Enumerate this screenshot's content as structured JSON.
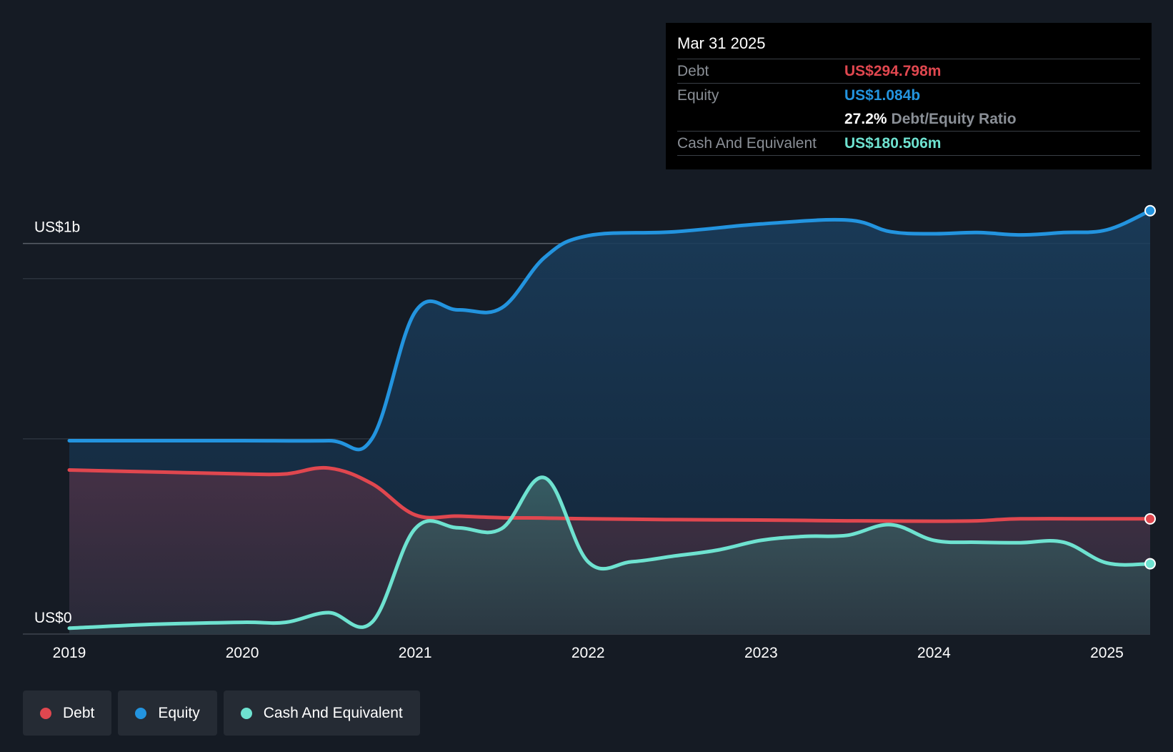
{
  "tooltip": {
    "date": "Mar 31 2025",
    "debt_label": "Debt",
    "debt_value": "US$294.798m",
    "equity_label": "Equity",
    "equity_value": "US$1.084b",
    "ratio_value": "27.2%",
    "ratio_label": "Debt/Equity Ratio",
    "cash_label": "Cash And Equivalent",
    "cash_value": "US$180.506m"
  },
  "legend": {
    "debt": "Debt",
    "equity": "Equity",
    "cash": "Cash And Equivalent"
  },
  "colors": {
    "background": "#151b24",
    "debt": "#e0474f",
    "equity": "#2394df",
    "cash": "#6ee2d0"
  },
  "chart_data": {
    "type": "area",
    "y_tick_labels": [
      "US$0",
      "US$1b"
    ],
    "ylim": [
      0,
      1.1
    ],
    "y_unit": "US$ billions",
    "gridlines": [
      0,
      0.5,
      0.91,
      1.0
    ],
    "grid": true,
    "legend_position": "bottom-left",
    "xlim": [
      2019.0,
      2025.25
    ],
    "x_ticks": [
      2019,
      2020,
      2021,
      2022,
      2023,
      2024,
      2025
    ],
    "x_tick_labels": [
      "2019",
      "2020",
      "2021",
      "2022",
      "2023",
      "2024",
      "2025"
    ],
    "series": [
      {
        "name": "Debt",
        "key": "debt",
        "x": [
          2019.0,
          2019.5,
          2020.0,
          2020.25,
          2020.5,
          2020.75,
          2021.0,
          2021.25,
          2021.5,
          2021.75,
          2022.0,
          2022.5,
          2023.0,
          2023.5,
          2024.0,
          2024.25,
          2024.5,
          2025.0,
          2025.25
        ],
        "values": [
          0.42,
          0.415,
          0.41,
          0.41,
          0.425,
          0.385,
          0.305,
          0.302,
          0.298,
          0.297,
          0.295,
          0.293,
          0.292,
          0.29,
          0.289,
          0.29,
          0.295,
          0.295,
          0.295
        ]
      },
      {
        "name": "Equity",
        "key": "equity",
        "x": [
          2019.0,
          2019.5,
          2020.0,
          2020.5,
          2020.75,
          2021.0,
          2021.25,
          2021.5,
          2021.75,
          2022.0,
          2022.5,
          2023.0,
          2023.5,
          2023.75,
          2024.0,
          2024.25,
          2024.5,
          2024.75,
          2025.0,
          2025.25
        ],
        "values": [
          0.495,
          0.495,
          0.495,
          0.495,
          0.5,
          0.825,
          0.83,
          0.835,
          0.965,
          1.02,
          1.03,
          1.05,
          1.06,
          1.03,
          1.025,
          1.028,
          1.022,
          1.028,
          1.035,
          1.084
        ]
      },
      {
        "name": "Cash And Equivalent",
        "key": "cash",
        "x": [
          2019.0,
          2019.5,
          2020.0,
          2020.25,
          2020.5,
          2020.75,
          2021.0,
          2021.25,
          2021.5,
          2021.75,
          2022.0,
          2022.25,
          2022.5,
          2022.75,
          2023.0,
          2023.25,
          2023.5,
          2023.75,
          2024.0,
          2024.25,
          2024.5,
          2024.75,
          2025.0,
          2025.25
        ],
        "values": [
          0.015,
          0.025,
          0.03,
          0.03,
          0.055,
          0.03,
          0.27,
          0.272,
          0.27,
          0.4,
          0.185,
          0.185,
          0.2,
          0.215,
          0.24,
          0.25,
          0.253,
          0.28,
          0.24,
          0.235,
          0.234,
          0.235,
          0.182,
          0.18
        ]
      }
    ]
  }
}
